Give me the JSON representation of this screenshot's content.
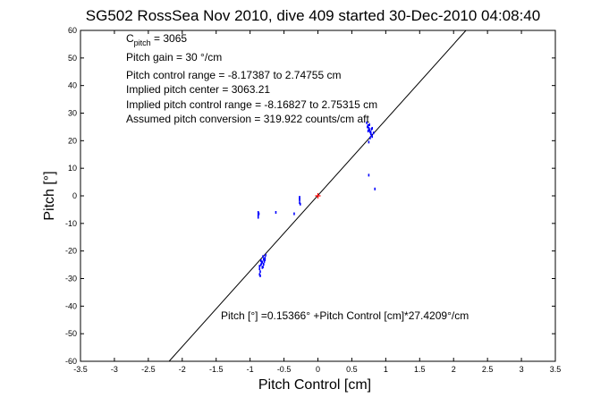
{
  "chart_data": {
    "type": "scatter",
    "title": "SG502 RossSea Nov 2010, dive 409 started 30-Dec-2010 04:08:40",
    "xlabel": "Pitch Control [cm]",
    "ylabel": "Pitch [°]",
    "xlim": [
      -3.5,
      3.5
    ],
    "ylim": [
      -60,
      60
    ],
    "x_ticks": [
      "-3.5",
      "-3",
      "-2.5",
      "-2",
      "-1.5",
      "-1",
      "-0.5",
      "0",
      "0.5",
      "1",
      "1.5",
      "2",
      "2.5",
      "3",
      "3.5"
    ],
    "y_ticks": [
      "60",
      "50",
      "40",
      "30",
      "20",
      "10",
      "0",
      "-10",
      "-20",
      "-30",
      "-40",
      "-50",
      "-60"
    ],
    "grid": false,
    "annotations": {
      "c_pitch_main": "C",
      "c_pitch_sub": "pitch",
      "c_pitch_value": " = 3065",
      "pitch_gain": "Pitch gain = 30 °/cm",
      "pitch_control_range": "Pitch control range = -8.17387 to 2.74755 cm",
      "implied_pitch_center": "Implied pitch center = 3063.21",
      "implied_pitch_control_range": "Implied pitch control range = -8.16827 to 2.75315 cm",
      "assumed_pitch_conversion": "Assumed pitch conversion = 319.922 counts/cm aft",
      "fit_equation": "Pitch [°] =0.15366° +Pitch Control [cm]*27.4209°/cm"
    },
    "fit_line": {
      "intercept": 0.15366,
      "slope": 27.4209
    },
    "center_marker": {
      "x": 0,
      "y": 0,
      "color": "#ff0000"
    },
    "series": [
      {
        "color": "#0000ff",
        "points": [
          [
            0.72,
            26.5
          ],
          [
            0.74,
            25.5
          ],
          [
            0.75,
            24.5
          ],
          [
            0.76,
            23.8
          ],
          [
            0.77,
            23.2
          ],
          [
            0.78,
            22.5
          ],
          [
            0.79,
            22.0
          ],
          [
            0.8,
            21.5
          ],
          [
            0.76,
            24.0
          ],
          [
            0.73,
            25.0
          ],
          [
            0.78,
            23.0
          ],
          [
            0.77,
            21.0
          ],
          [
            0.75,
            19.5
          ],
          [
            0.8,
            24.5
          ],
          [
            0.82,
            22.8
          ],
          [
            0.74,
            23.5
          ],
          [
            0.76,
            25.8
          ],
          [
            0.79,
            24.2
          ],
          [
            0.75,
            7.5
          ],
          [
            0.84,
            2.5
          ],
          [
            -0.27,
            -0.5
          ],
          [
            -0.27,
            -1.5
          ],
          [
            -0.27,
            -2.5
          ],
          [
            -0.26,
            -3.0
          ],
          [
            -0.27,
            -1.0
          ],
          [
            -0.88,
            -6.0
          ],
          [
            -0.88,
            -7.0
          ],
          [
            -0.88,
            -7.8
          ],
          [
            -0.87,
            -6.5
          ],
          [
            -0.62,
            -6.0
          ],
          [
            -0.35,
            -6.5
          ],
          [
            -0.8,
            -23.0
          ],
          [
            -0.78,
            -22.5
          ],
          [
            -0.82,
            -24.0
          ],
          [
            -0.84,
            -25.0
          ],
          [
            -0.86,
            -26.5
          ],
          [
            -0.85,
            -27.5
          ],
          [
            -0.79,
            -23.8
          ],
          [
            -0.81,
            -22.0
          ],
          [
            -0.77,
            -21.5
          ],
          [
            -0.83,
            -24.5
          ],
          [
            -0.86,
            -25.5
          ],
          [
            -0.8,
            -24.8
          ],
          [
            -0.78,
            -23.2
          ],
          [
            -0.82,
            -26.0
          ],
          [
            -0.84,
            -23.5
          ],
          [
            -0.86,
            -28.5
          ],
          [
            -0.85,
            -29.0
          ],
          [
            -0.81,
            -25.8
          ]
        ]
      }
    ]
  }
}
